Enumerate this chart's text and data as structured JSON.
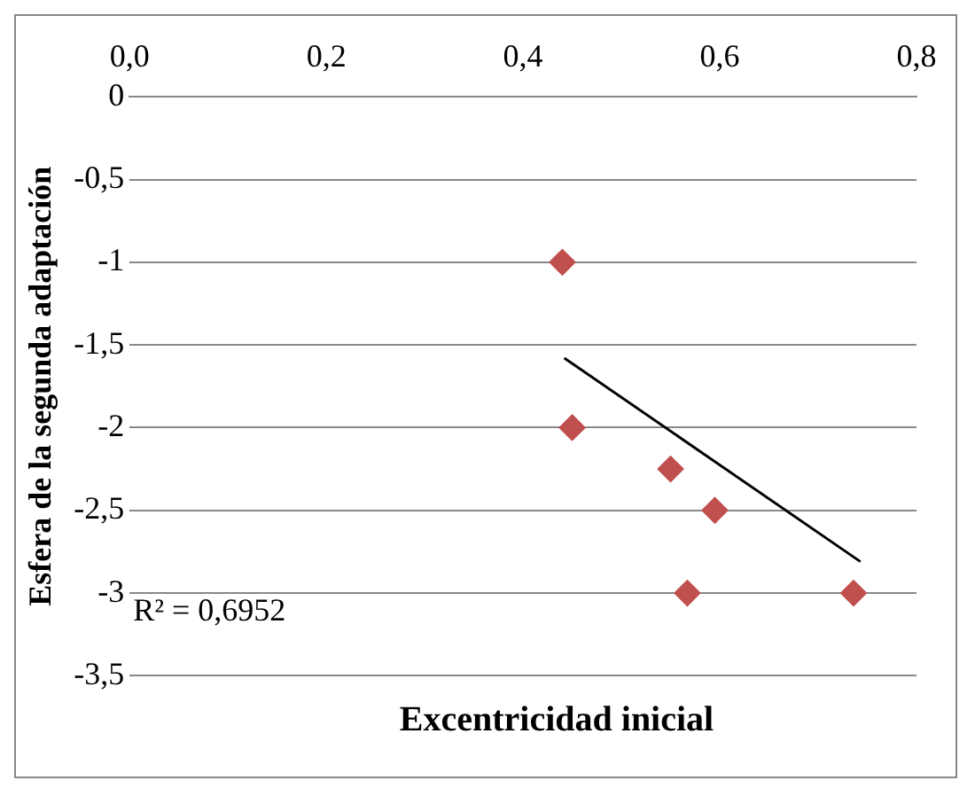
{
  "chart_data": {
    "type": "scatter",
    "xlabel": "Excentricidad inicial",
    "ylabel": "Esfera de la segunda adaptación",
    "series": [
      {
        "type": "scatter",
        "color": "#c0504d",
        "x": [
          0.44,
          0.45,
          0.55,
          0.595,
          0.567,
          0.736
        ],
        "values": [
          -1,
          -2,
          -2.25,
          -2.5,
          -3,
          -3
        ],
        "marker": "diamond"
      },
      {
        "type": "line",
        "color": "#000000",
        "x": [
          0.442,
          0.743
        ],
        "values": [
          -1.58,
          -2.81
        ],
        "marker": "none"
      }
    ],
    "xlim": [
      0,
      0.8
    ],
    "xticks": [
      {
        "value": 0,
        "label": "0,0"
      },
      {
        "value": 0.2,
        "label": "0,2"
      },
      {
        "value": 0.4,
        "label": "0,4"
      },
      {
        "value": 0.6,
        "label": "0,6"
      },
      {
        "value": 0.8,
        "label": "0,8"
      }
    ],
    "ylim": [
      -3.5,
      0
    ],
    "yticks": [
      {
        "value": -3.5,
        "label": "-3,5"
      },
      -3,
      {
        "value": -2.5,
        "label": "-2,5"
      },
      -2,
      {
        "value": -1.5,
        "label": "-1,5"
      },
      -1,
      {
        "value": -0.5,
        "label": "-0,5"
      },
      0
    ],
    "grid": "y",
    "legend": false,
    "annotations": [
      "R² = 0,6952"
    ]
  }
}
